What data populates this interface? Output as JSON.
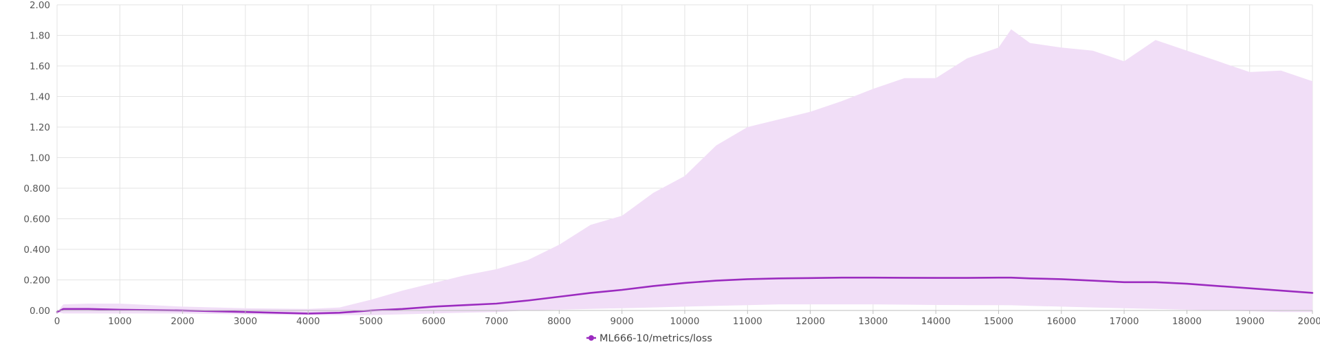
{
  "chart_data": {
    "type": "line",
    "xlim": [
      0,
      20000
    ],
    "ylim": [
      0,
      2.0
    ],
    "x_ticks": [
      "0",
      "1000",
      "2000",
      "3000",
      "4000",
      "5000",
      "6000",
      "7000",
      "8000",
      "9000",
      "10000",
      "11000",
      "12000",
      "13000",
      "14000",
      "15000",
      "16000",
      "17000",
      "18000",
      "19000",
      "20000"
    ],
    "y_ticks": [
      "0.00",
      "0.200",
      "0.400",
      "0.600",
      "0.800",
      "1.00",
      "1.20",
      "1.40",
      "1.60",
      "1.80",
      "2.00"
    ],
    "grid": true,
    "legend_position": "bottom-center",
    "series": [
      {
        "name": "ML666-10/metrics/loss",
        "color": "#9b2bbf",
        "band_color": "#f1def7",
        "x": [
          0,
          100,
          500,
          1000,
          2000,
          3000,
          4000,
          4500,
          5000,
          5500,
          6000,
          6500,
          7000,
          7500,
          8000,
          8500,
          9000,
          9500,
          10000,
          10500,
          11000,
          11500,
          12000,
          12500,
          13000,
          13500,
          14000,
          14500,
          15000,
          15200,
          15500,
          16000,
          16500,
          17000,
          17500,
          18000,
          18500,
          19000,
          19500,
          20000
        ],
        "mean": [
          -0.01,
          0.01,
          0.01,
          0.005,
          0.0,
          -0.01,
          -0.02,
          -0.015,
          0.0,
          0.01,
          0.025,
          0.035,
          0.045,
          0.065,
          0.09,
          0.115,
          0.135,
          0.16,
          0.18,
          0.195,
          0.205,
          0.21,
          0.212,
          0.215,
          0.215,
          0.214,
          0.213,
          0.213,
          0.215,
          0.215,
          0.21,
          0.205,
          0.195,
          0.185,
          0.185,
          0.175,
          0.16,
          0.145,
          0.13,
          0.115
        ],
        "upper": [
          -0.01,
          0.04,
          0.045,
          0.045,
          0.025,
          0.015,
          0.01,
          0.02,
          0.07,
          0.13,
          0.18,
          0.23,
          0.27,
          0.33,
          0.43,
          0.56,
          0.62,
          0.77,
          0.88,
          1.08,
          1.2,
          1.25,
          1.3,
          1.37,
          1.45,
          1.52,
          1.52,
          1.65,
          1.72,
          1.84,
          1.75,
          1.72,
          1.7,
          1.63,
          1.77,
          1.7,
          1.63,
          1.56,
          1.57,
          1.5
        ],
        "lower": [
          -0.01,
          -0.02,
          -0.02,
          -0.02,
          -0.02,
          -0.025,
          -0.03,
          -0.03,
          -0.03,
          -0.025,
          -0.02,
          -0.015,
          -0.01,
          0.0,
          0.005,
          0.01,
          0.015,
          0.02,
          0.025,
          0.03,
          0.035,
          0.04,
          0.04,
          0.04,
          0.04,
          0.038,
          0.036,
          0.035,
          0.035,
          0.034,
          0.03,
          0.025,
          0.02,
          0.015,
          0.01,
          0.005,
          0.0,
          -0.005,
          -0.01,
          -0.01
        ]
      }
    ]
  }
}
